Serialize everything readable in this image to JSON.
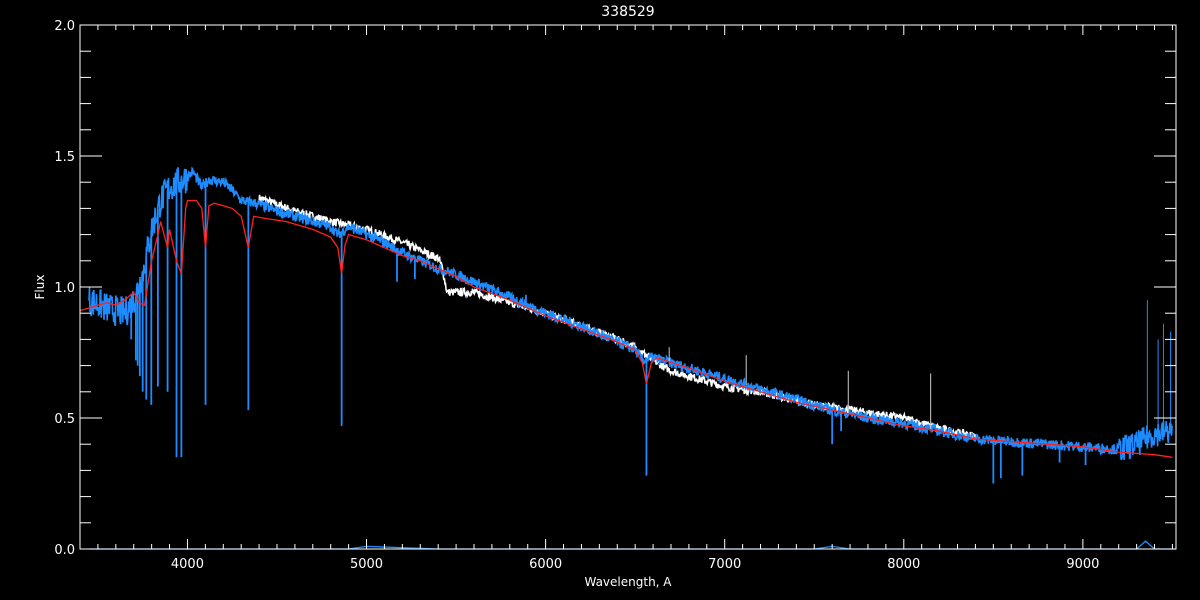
{
  "chart_data": {
    "type": "line",
    "title": "338529",
    "xlabel": "Wavelength, A",
    "ylabel": "Flux",
    "xlim": [
      3400,
      9520
    ],
    "ylim": [
      0.0,
      2.0
    ],
    "x_major_ticks": [
      4000,
      5000,
      6000,
      7000,
      8000,
      9000
    ],
    "x_minor_step": 100,
    "y_major_ticks": [
      0.0,
      0.5,
      1.0,
      1.5,
      2.0
    ],
    "y_tick_labels": [
      "0.0",
      "0.5",
      "1.0",
      "1.5",
      "2.0"
    ],
    "y_minor_step": 0.1,
    "grid": false,
    "background": "#000000",
    "series": [
      {
        "color": "#ffffff",
        "points": [
          [
            4400,
            1.34
          ],
          [
            4600,
            1.29
          ],
          [
            4800,
            1.25
          ],
          [
            5000,
            1.22
          ],
          [
            5200,
            1.17
          ],
          [
            5400,
            1.11
          ],
          [
            5420,
            1.08
          ],
          [
            5450,
            0.98
          ],
          [
            5600,
            0.98
          ],
          [
            5800,
            0.94
          ],
          [
            6000,
            0.9
          ],
          [
            6200,
            0.85
          ],
          [
            6400,
            0.8
          ],
          [
            6500,
            0.77
          ],
          [
            6600,
            0.72
          ],
          [
            6700,
            0.68
          ],
          [
            6800,
            0.66
          ],
          [
            7000,
            0.62
          ],
          [
            7200,
            0.6
          ],
          [
            7500,
            0.55
          ],
          [
            7800,
            0.52
          ],
          [
            8000,
            0.5
          ],
          [
            8200,
            0.46
          ],
          [
            8400,
            0.43
          ]
        ]
      },
      {
        "color": "#1e8cff",
        "points": [
          [
            3450,
            0.95
          ],
          [
            3550,
            0.92
          ],
          [
            3650,
            0.9
          ],
          [
            3700,
            0.95
          ],
          [
            3750,
            1.05
          ],
          [
            3800,
            1.22
          ],
          [
            3850,
            1.33
          ],
          [
            3900,
            1.38
          ],
          [
            3950,
            1.4
          ],
          [
            4000,
            1.42
          ],
          [
            4030,
            1.44
          ],
          [
            4080,
            1.38
          ],
          [
            4120,
            1.41
          ],
          [
            4200,
            1.4
          ],
          [
            4250,
            1.37
          ],
          [
            4300,
            1.33
          ],
          [
            4380,
            1.32
          ],
          [
            4500,
            1.29
          ],
          [
            4650,
            1.26
          ],
          [
            4800,
            1.23
          ],
          [
            4840,
            1.2
          ],
          [
            4900,
            1.23
          ],
          [
            5000,
            1.2
          ],
          [
            5100,
            1.17
          ],
          [
            5200,
            1.13
          ],
          [
            5300,
            1.1
          ],
          [
            5400,
            1.07
          ],
          [
            5450,
            1.06
          ],
          [
            5600,
            1.02
          ],
          [
            5800,
            0.96
          ],
          [
            6000,
            0.9
          ],
          [
            6200,
            0.85
          ],
          [
            6400,
            0.79
          ],
          [
            6500,
            0.76
          ],
          [
            6540,
            0.72
          ],
          [
            6600,
            0.73
          ],
          [
            6800,
            0.69
          ],
          [
            7000,
            0.65
          ],
          [
            7200,
            0.61
          ],
          [
            7400,
            0.57
          ],
          [
            7600,
            0.53
          ],
          [
            7800,
            0.5
          ],
          [
            8000,
            0.48
          ],
          [
            8200,
            0.45
          ],
          [
            8400,
            0.42
          ],
          [
            8600,
            0.41
          ],
          [
            8800,
            0.4
          ],
          [
            9000,
            0.39
          ],
          [
            9200,
            0.38
          ],
          [
            9300,
            0.4
          ],
          [
            9400,
            0.44
          ],
          [
            9500,
            0.45
          ]
        ],
        "absorption_lines": [
          [
            3686,
            0.8
          ],
          [
            3712,
            0.72
          ],
          [
            3722,
            0.7
          ],
          [
            3734,
            0.66
          ],
          [
            3750,
            0.6
          ],
          [
            3770,
            0.57
          ],
          [
            3798,
            0.55
          ],
          [
            3835,
            0.62
          ],
          [
            3889,
            0.6
          ],
          [
            3939,
            0.35
          ],
          [
            3966,
            0.35
          ],
          [
            4101,
            0.55
          ],
          [
            4340,
            0.53
          ],
          [
            4861,
            0.47
          ],
          [
            5170,
            1.02
          ],
          [
            5270,
            1.03
          ],
          [
            5890,
            0.97
          ],
          [
            6563,
            0.28
          ],
          [
            7600,
            0.4
          ],
          [
            7650,
            0.45
          ],
          [
            8500,
            0.25
          ],
          [
            8542,
            0.27
          ],
          [
            8662,
            0.28
          ],
          [
            8870,
            0.33
          ],
          [
            9015,
            0.32
          ],
          [
            9230,
            0.34
          ]
        ],
        "emission_spikes": [
          [
            6690,
            0.77
          ],
          [
            7120,
            0.74
          ],
          [
            7690,
            0.68
          ],
          [
            8150,
            0.67
          ],
          [
            9360,
            0.95
          ],
          [
            9420,
            0.8
          ],
          [
            9450,
            0.86
          ],
          [
            9490,
            0.83
          ]
        ]
      },
      {
        "color": "#ff2020",
        "points": [
          [
            3400,
            0.91
          ],
          [
            3450,
            0.92
          ],
          [
            3500,
            0.93
          ],
          [
            3550,
            0.94
          ],
          [
            3600,
            0.93
          ],
          [
            3650,
            0.95
          ],
          [
            3700,
            0.98
          ],
          [
            3730,
            0.94
          ],
          [
            3760,
            0.93
          ],
          [
            3800,
            1.1
          ],
          [
            3835,
            1.2
          ],
          [
            3850,
            1.25
          ],
          [
            3889,
            1.15
          ],
          [
            3900,
            1.22
          ],
          [
            3939,
            1.1
          ],
          [
            3966,
            1.05
          ],
          [
            3990,
            1.3
          ],
          [
            4000,
            1.33
          ],
          [
            4050,
            1.33
          ],
          [
            4080,
            1.3
          ],
          [
            4101,
            1.15
          ],
          [
            4120,
            1.31
          ],
          [
            4150,
            1.32
          ],
          [
            4200,
            1.31
          ],
          [
            4250,
            1.3
          ],
          [
            4300,
            1.27
          ],
          [
            4340,
            1.15
          ],
          [
            4370,
            1.27
          ],
          [
            4450,
            1.26
          ],
          [
            4550,
            1.25
          ],
          [
            4700,
            1.22
          ],
          [
            4800,
            1.19
          ],
          [
            4840,
            1.15
          ],
          [
            4861,
            1.05
          ],
          [
            4880,
            1.16
          ],
          [
            4900,
            1.2
          ],
          [
            5000,
            1.18
          ],
          [
            5100,
            1.15
          ],
          [
            5200,
            1.12
          ],
          [
            5300,
            1.1
          ],
          [
            5400,
            1.07
          ],
          [
            5500,
            1.04
          ],
          [
            5600,
            1.0
          ],
          [
            5800,
            0.95
          ],
          [
            6000,
            0.89
          ],
          [
            6200,
            0.84
          ],
          [
            6400,
            0.79
          ],
          [
            6500,
            0.76
          ],
          [
            6540,
            0.71
          ],
          [
            6563,
            0.63
          ],
          [
            6590,
            0.71
          ],
          [
            6620,
            0.73
          ],
          [
            6800,
            0.69
          ],
          [
            7000,
            0.64
          ],
          [
            7200,
            0.6
          ],
          [
            7400,
            0.56
          ],
          [
            7600,
            0.53
          ],
          [
            7800,
            0.5
          ],
          [
            8000,
            0.47
          ],
          [
            8200,
            0.45
          ],
          [
            8400,
            0.42
          ],
          [
            8600,
            0.41
          ],
          [
            8800,
            0.4
          ],
          [
            9000,
            0.39
          ],
          [
            9200,
            0.37
          ],
          [
            9400,
            0.36
          ],
          [
            9500,
            0.35
          ]
        ]
      },
      {
        "color": "#1e8cff",
        "points": [
          [
            3450,
            0.0
          ],
          [
            4000,
            0.0
          ],
          [
            4900,
            0.0
          ],
          [
            5000,
            0.01
          ],
          [
            5400,
            0.0
          ],
          [
            7500,
            0.0
          ],
          [
            7600,
            0.01
          ],
          [
            7700,
            0.0
          ],
          [
            9300,
            0.0
          ],
          [
            9350,
            0.03
          ],
          [
            9400,
            0.0
          ],
          [
            9520,
            0.0
          ]
        ]
      }
    ]
  }
}
